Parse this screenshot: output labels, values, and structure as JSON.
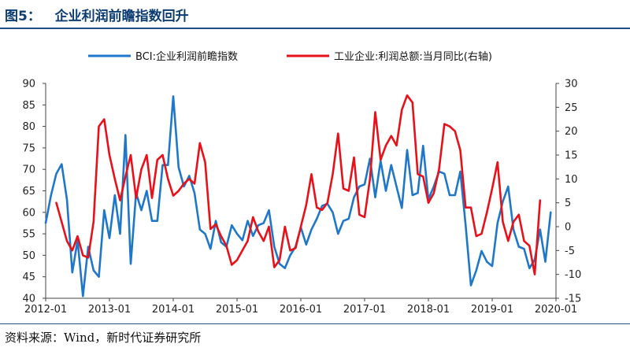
{
  "header": {
    "title": "图5：   企业利润前瞻指数回升"
  },
  "footer": {
    "source": "资料来源：Wind，新时代证券研究所"
  },
  "colors": {
    "bci": "#1f77c9",
    "profit": "#e8111a",
    "title": "#0d3d73"
  },
  "chart_data": {
    "type": "line",
    "title": "",
    "xlabel": "",
    "ylabel": "",
    "grid": false,
    "legend_position": "top",
    "x_ticks": [
      "2012-01",
      "2013-01",
      "2014-01",
      "2015-01",
      "2016-01",
      "2017-01",
      "2018-01",
      "2019-01",
      "2020-01"
    ],
    "y_left": {
      "range": [
        40,
        90
      ],
      "ticks": [
        40,
        45,
        50,
        55,
        60,
        65,
        70,
        75,
        80,
        85,
        90
      ]
    },
    "y_right": {
      "range": [
        -15,
        30
      ],
      "ticks": [
        -15,
        -10,
        -5,
        0,
        5,
        10,
        15,
        20,
        25,
        30
      ]
    },
    "series": [
      {
        "name": "BCI:企业利润前瞻指数",
        "axis": "left",
        "color": "#1f77c9",
        "points": [
          [
            "2012-01",
            57.5
          ],
          [
            "2012-02",
            64
          ],
          [
            "2012-03",
            69
          ],
          [
            "2012-04",
            71.2
          ],
          [
            "2012-05",
            63
          ],
          [
            "2012-06",
            46
          ],
          [
            "2012-07",
            53.5
          ],
          [
            "2012-08",
            40.5
          ],
          [
            "2012-09",
            52
          ],
          [
            "2012-10",
            46.5
          ],
          [
            "2012-11",
            45
          ],
          [
            "2012-12",
            60.5
          ],
          [
            "2013-01",
            54
          ],
          [
            "2013-02",
            64
          ],
          [
            "2013-03",
            55
          ],
          [
            "2013-04",
            78
          ],
          [
            "2013-05",
            48
          ],
          [
            "2013-06",
            64.5
          ],
          [
            "2013-07",
            60.5
          ],
          [
            "2013-08",
            65
          ],
          [
            "2013-09",
            58
          ],
          [
            "2013-10",
            58
          ],
          [
            "2013-11",
            71
          ],
          [
            "2013-12",
            71
          ],
          [
            "2014-01",
            87
          ],
          [
            "2014-02",
            70.5
          ],
          [
            "2014-03",
            66
          ],
          [
            "2014-04",
            68.5
          ],
          [
            "2014-05",
            64.5
          ],
          [
            "2014-06",
            56
          ],
          [
            "2014-07",
            55
          ],
          [
            "2014-08",
            51.5
          ],
          [
            "2014-09",
            58
          ],
          [
            "2014-10",
            53
          ],
          [
            "2014-11",
            52
          ],
          [
            "2014-12",
            57
          ],
          [
            "2015-01",
            55
          ],
          [
            "2015-02",
            53.5
          ],
          [
            "2015-03",
            58
          ],
          [
            "2015-04",
            54.5
          ],
          [
            "2015-05",
            57
          ],
          [
            "2015-06",
            57.5
          ],
          [
            "2015-07",
            60.5
          ],
          [
            "2015-08",
            52
          ],
          [
            "2015-09",
            48
          ],
          [
            "2015-10",
            47
          ],
          [
            "2015-11",
            50
          ],
          [
            "2015-12",
            52
          ],
          [
            "2016-01",
            56.5
          ],
          [
            "2016-02",
            52.5
          ],
          [
            "2016-03",
            56
          ],
          [
            "2016-04",
            58.5
          ],
          [
            "2016-05",
            61.5
          ],
          [
            "2016-06",
            62
          ],
          [
            "2016-07",
            60
          ],
          [
            "2016-08",
            55
          ],
          [
            "2016-09",
            58
          ],
          [
            "2016-10",
            58.5
          ],
          [
            "2016-11",
            63.5
          ],
          [
            "2016-12",
            66
          ],
          [
            "2017-01",
            66.5
          ],
          [
            "2017-02",
            72.5
          ],
          [
            "2017-03",
            63.5
          ],
          [
            "2017-04",
            72
          ],
          [
            "2017-05",
            65
          ],
          [
            "2017-06",
            71
          ],
          [
            "2017-07",
            66
          ],
          [
            "2017-08",
            61
          ],
          [
            "2017-09",
            74.5
          ],
          [
            "2017-10",
            64
          ],
          [
            "2017-11",
            64.5
          ],
          [
            "2017-12",
            75.5
          ],
          [
            "2018-01",
            63
          ],
          [
            "2018-02",
            66
          ],
          [
            "2018-03",
            69.5
          ],
          [
            "2018-04",
            69
          ],
          [
            "2018-05",
            64
          ],
          [
            "2018-06",
            64
          ],
          [
            "2018-07",
            69.5
          ],
          [
            "2018-08",
            57
          ],
          [
            "2018-09",
            43
          ],
          [
            "2018-10",
            46.5
          ],
          [
            "2018-11",
            51
          ],
          [
            "2018-12",
            48.5
          ],
          [
            "2019-01",
            47.5
          ],
          [
            "2019-02",
            57.5
          ],
          [
            "2019-03",
            62.5
          ],
          [
            "2019-04",
            66
          ],
          [
            "2019-05",
            56
          ],
          [
            "2019-06",
            52
          ],
          [
            "2019-07",
            51.5
          ],
          [
            "2019-08",
            47
          ],
          [
            "2019-09",
            49
          ],
          [
            "2019-10",
            56
          ],
          [
            "2019-11",
            48.5
          ],
          [
            "2019-12",
            60
          ]
        ]
      },
      {
        "name": "工业企业:利润总额:当月同比(右轴)",
        "axis": "right",
        "color": "#e8111a",
        "points": [
          [
            "2012-03",
            5
          ],
          [
            "2012-05",
            -3
          ],
          [
            "2012-06",
            -5
          ],
          [
            "2012-07",
            -2
          ],
          [
            "2012-08",
            -6
          ],
          [
            "2012-09",
            -6.5
          ],
          [
            "2012-10",
            1
          ],
          [
            "2012-11",
            21
          ],
          [
            "2012-12",
            22.5
          ],
          [
            "2013-01",
            15
          ],
          [
            "2013-02",
            10
          ],
          [
            "2013-03",
            5.5
          ],
          [
            "2013-04",
            10.5
          ],
          [
            "2013-05",
            15
          ],
          [
            "2013-06",
            6
          ],
          [
            "2013-07",
            12
          ],
          [
            "2013-08",
            15
          ],
          [
            "2013-09",
            6
          ],
          [
            "2013-10",
            14
          ],
          [
            "2013-11",
            15
          ],
          [
            "2013-12",
            10
          ],
          [
            "2014-01",
            6.5
          ],
          [
            "2014-02",
            7.5
          ],
          [
            "2014-03",
            9
          ],
          [
            "2014-04",
            10
          ],
          [
            "2014-05",
            9
          ],
          [
            "2014-06",
            17.5
          ],
          [
            "2014-07",
            13.5
          ],
          [
            "2014-08",
            -0.5
          ],
          [
            "2014-09",
            0.5
          ],
          [
            "2014-10",
            -2
          ],
          [
            "2014-11",
            -4
          ],
          [
            "2014-12",
            -8
          ],
          [
            "2015-01",
            -7
          ],
          [
            "2015-02",
            -5
          ],
          [
            "2015-03",
            -3
          ],
          [
            "2015-04",
            2
          ],
          [
            "2015-05",
            -1
          ],
          [
            "2015-06",
            -3
          ],
          [
            "2015-07",
            0
          ],
          [
            "2015-08",
            -8.5
          ],
          [
            "2015-09",
            -7
          ],
          [
            "2015-10",
            0
          ],
          [
            "2015-11",
            -5
          ],
          [
            "2015-12",
            -4.5
          ],
          [
            "2016-01",
            0
          ],
          [
            "2016-02",
            4.5
          ],
          [
            "2016-03",
            11
          ],
          [
            "2016-04",
            4
          ],
          [
            "2016-05",
            3.5
          ],
          [
            "2016-06",
            5
          ],
          [
            "2016-07",
            11
          ],
          [
            "2016-08",
            19.5
          ],
          [
            "2016-09",
            8
          ],
          [
            "2016-10",
            7.5
          ],
          [
            "2016-11",
            14.5
          ],
          [
            "2016-12",
            2.5
          ],
          [
            "2017-01",
            2
          ],
          [
            "2017-02",
            10
          ],
          [
            "2017-03",
            24
          ],
          [
            "2017-04",
            14
          ],
          [
            "2017-05",
            17
          ],
          [
            "2017-06",
            19
          ],
          [
            "2017-07",
            17
          ],
          [
            "2017-08",
            24.5
          ],
          [
            "2017-09",
            27.5
          ],
          [
            "2017-10",
            26
          ],
          [
            "2017-11",
            11
          ],
          [
            "2017-12",
            10.5
          ],
          [
            "2018-01",
            5
          ],
          [
            "2018-02",
            7
          ],
          [
            "2018-03",
            12
          ],
          [
            "2018-04",
            21.5
          ],
          [
            "2018-05",
            21
          ],
          [
            "2018-06",
            20
          ],
          [
            "2018-07",
            16
          ],
          [
            "2018-08",
            4
          ],
          [
            "2018-09",
            4
          ],
          [
            "2018-10",
            -2
          ],
          [
            "2018-11",
            -1.5
          ],
          [
            "2018-12",
            3
          ],
          [
            "2019-01",
            8
          ],
          [
            "2019-02",
            13.5
          ],
          [
            "2019-03",
            1
          ],
          [
            "2019-04",
            -3
          ],
          [
            "2019-05",
            1
          ],
          [
            "2019-06",
            2.5
          ],
          [
            "2019-07",
            -3
          ],
          [
            "2019-08",
            -4
          ],
          [
            "2019-09",
            -10
          ],
          [
            "2019-10",
            5.5
          ]
        ]
      }
    ]
  }
}
